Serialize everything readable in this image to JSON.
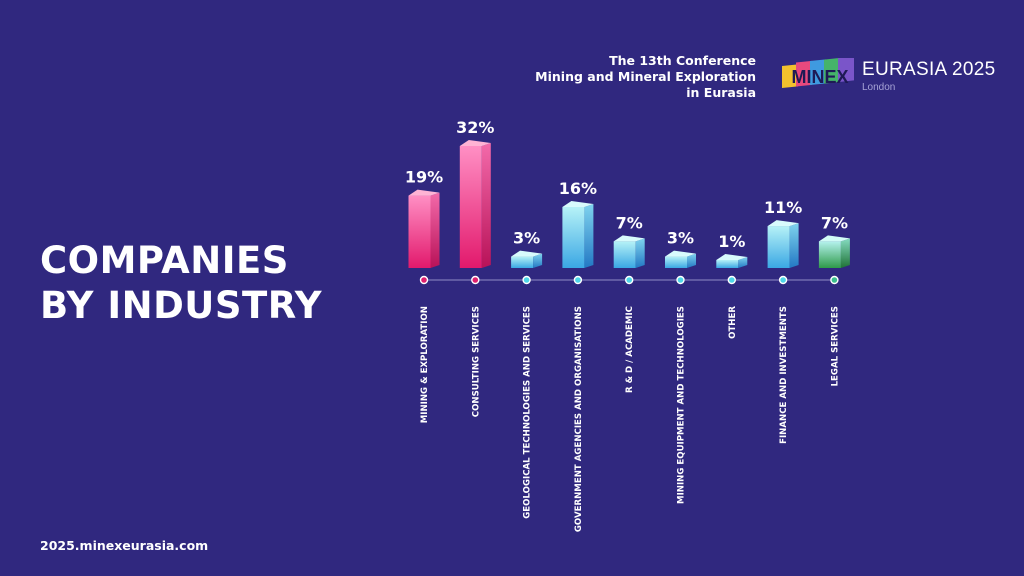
{
  "header": {
    "conference_lines": [
      "The 13th Conference",
      "Mining and Mineral Exploration",
      "in Eurasia"
    ],
    "logo": {
      "mark_text": "MINEX",
      "event": "EURASIA 2025",
      "city": "London"
    }
  },
  "main": {
    "title_lines": [
      "COMPANIES",
      "BY INDUSTRY"
    ]
  },
  "footer": {
    "url": "2025.minexeurasia.com"
  },
  "colors": {
    "background": "#30287f",
    "pink": "#ea3b8a",
    "blue": "#3fa3e6",
    "green": "#3aa86a",
    "axis": "#7d78b8"
  },
  "chart_data": {
    "type": "bar",
    "title": "COMPANIES BY INDUSTRY",
    "xlabel": "",
    "ylabel": "",
    "unit": "%",
    "ylim": [
      0,
      32
    ],
    "grid": false,
    "legend": "none",
    "categories": [
      "MINING & EXPLORATION",
      "CONSULTING SERVICES",
      "GEOLOGICAL TECHNOLOGIES AND SERVICES",
      "GOVERNMENT AGENCIES AND ORGANISATIONS",
      "R & D / ACADEMIC",
      "MINING EQUIPMENT AND TECHNOLOGIES",
      "OTHER",
      "FINANCE AND INVESTMENTS",
      "LEGAL SERVICES"
    ],
    "values": [
      19,
      32,
      3,
      16,
      7,
      3,
      1,
      11,
      7
    ],
    "value_labels": [
      "19%",
      "32%",
      "3%",
      "16%",
      "7%",
      "3%",
      "1%",
      "11%",
      "7%"
    ],
    "bar_colors": [
      "pink",
      "pink",
      "blue",
      "blue",
      "blue",
      "blue",
      "blue",
      "blue",
      "green"
    ]
  }
}
